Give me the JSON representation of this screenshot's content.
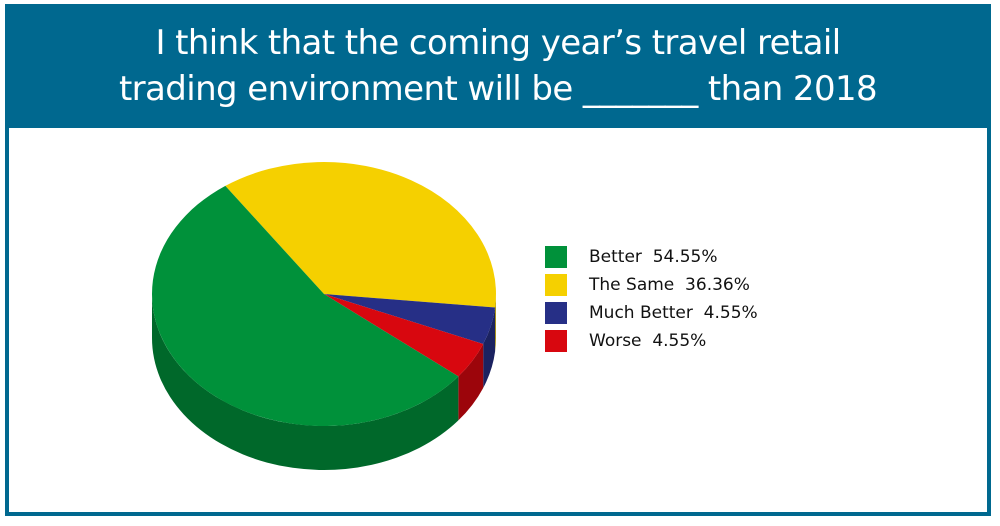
{
  "header": {
    "title_line1": "I think that the coming year’s travel retail",
    "title_line2": "trading environment will be _______ than 2018"
  },
  "colors": {
    "header_bg": "#00688f",
    "border": "#00688f"
  },
  "legend": {
    "items": [
      {
        "label": "Better  54.55%",
        "color": "#00913a"
      },
      {
        "label": "The Same  36.36%",
        "color": "#f5d000"
      },
      {
        "label": "Much Better  4.55%",
        "color": "#262f86"
      },
      {
        "label": "Worse  4.55%",
        "color": "#d8070f"
      }
    ]
  },
  "chart_data": {
    "type": "pie",
    "style": "3d",
    "title": "I think that the coming year’s travel retail trading environment will be _______ than 2018",
    "categories": [
      "Better",
      "The Same",
      "Much Better",
      "Worse"
    ],
    "values": [
      54.55,
      36.36,
      4.55,
      4.55
    ],
    "colors": [
      "#00913a",
      "#f5d000",
      "#262f86",
      "#d8070f"
    ],
    "legend_position": "right",
    "unit": "%"
  }
}
